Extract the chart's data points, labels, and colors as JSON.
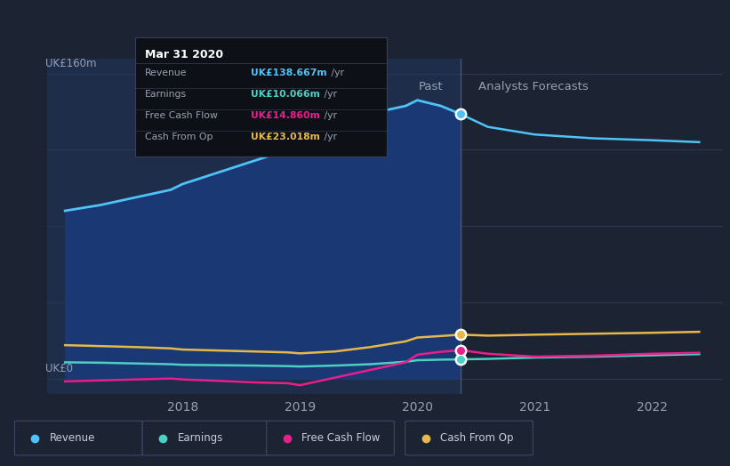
{
  "bg_color": "#1c2333",
  "past_bg": "#1e2d4a",
  "forecast_bg": "#1c2333",
  "divider_x": 2020.37,
  "x_min": 2016.85,
  "x_max": 2022.6,
  "y_min": -8,
  "y_max": 168,
  "y_label": "UK£160m",
  "y_zero_label": "UK£0",
  "x_ticks": [
    2018,
    2019,
    2020,
    2021,
    2022
  ],
  "past_label": "Past",
  "forecast_label": "Analysts Forecasts",
  "grid_color": "#2e3a50",
  "divider_color": "#4a5570",
  "revenue": {
    "x": [
      2017.0,
      2017.3,
      2017.6,
      2017.9,
      2018.0,
      2018.3,
      2018.6,
      2018.9,
      2019.0,
      2019.3,
      2019.6,
      2019.9,
      2020.0,
      2020.2,
      2020.37
    ],
    "y": [
      88,
      91,
      95,
      99,
      102,
      108,
      114,
      120,
      126,
      133,
      139,
      143,
      146,
      143,
      138.667
    ],
    "color": "#4fc3f7",
    "fill_color": "#1a3a78",
    "label": "Revenue"
  },
  "revenue_forecast": {
    "x": [
      2020.37,
      2020.6,
      2021.0,
      2021.5,
      2022.0,
      2022.4
    ],
    "y": [
      138.667,
      132,
      128,
      126,
      125,
      124
    ],
    "color": "#4fc3f7"
  },
  "earnings": {
    "x": [
      2017.0,
      2017.3,
      2017.6,
      2017.9,
      2018.0,
      2018.3,
      2018.6,
      2018.9,
      2019.0,
      2019.3,
      2019.6,
      2019.9,
      2020.0,
      2020.2,
      2020.37
    ],
    "y": [
      8.5,
      8.3,
      7.9,
      7.5,
      7.2,
      7.0,
      6.8,
      6.5,
      6.3,
      6.8,
      7.5,
      8.8,
      9.6,
      9.9,
      10.066
    ],
    "color": "#4dd0c4",
    "label": "Earnings"
  },
  "earnings_forecast": {
    "x": [
      2020.37,
      2020.6,
      2021.0,
      2021.5,
      2022.0,
      2022.4
    ],
    "y": [
      10.066,
      10.3,
      11.0,
      11.5,
      12.2,
      12.8
    ],
    "color": "#4dd0c4"
  },
  "fcf": {
    "x": [
      2017.0,
      2017.3,
      2017.6,
      2017.9,
      2018.0,
      2018.3,
      2018.6,
      2018.9,
      2019.0,
      2019.3,
      2019.6,
      2019.9,
      2020.0,
      2020.2,
      2020.37
    ],
    "y": [
      -1.5,
      -1.0,
      -0.5,
      0.0,
      -0.5,
      -1.2,
      -2.0,
      -2.5,
      -3.5,
      0.5,
      4.5,
      8.5,
      12.5,
      14.0,
      14.86
    ],
    "color": "#e91e8c",
    "label": "Free Cash Flow"
  },
  "fcf_forecast": {
    "x": [
      2020.37,
      2020.6,
      2021.0,
      2021.5,
      2022.0,
      2022.4
    ],
    "y": [
      14.86,
      13.0,
      11.5,
      12.0,
      13.0,
      13.5
    ],
    "color": "#e91e8c"
  },
  "cashfromop": {
    "x": [
      2017.0,
      2017.3,
      2017.6,
      2017.9,
      2018.0,
      2018.3,
      2018.6,
      2018.9,
      2019.0,
      2019.3,
      2019.6,
      2019.9,
      2020.0,
      2020.2,
      2020.37
    ],
    "y": [
      17.5,
      17.0,
      16.5,
      15.8,
      15.2,
      14.7,
      14.2,
      13.7,
      13.2,
      14.2,
      16.5,
      19.5,
      21.5,
      22.3,
      23.018
    ],
    "color": "#e6b84a",
    "label": "Cash From Op"
  },
  "cashfromop_forecast": {
    "x": [
      2020.37,
      2020.6,
      2021.0,
      2021.5,
      2022.0,
      2022.4
    ],
    "y": [
      23.018,
      22.5,
      23.0,
      23.5,
      24.0,
      24.5
    ],
    "color": "#e6b84a"
  },
  "tooltip": {
    "title": "Mar 31 2020",
    "rows": [
      {
        "label": "Revenue",
        "value": "UK£138.667m /yr",
        "color": "#4fc3f7"
      },
      {
        "label": "Earnings",
        "value": "UK£10.066m /yr",
        "color": "#4dd0c4"
      },
      {
        "label": "Free Cash Flow",
        "value": "UK£14.860m /yr",
        "color": "#e91e8c"
      },
      {
        "label": "Cash From Op",
        "value": "UK£23.018m /yr",
        "color": "#e6b84a"
      }
    ],
    "bg": "#0d1117",
    "border": "#3a3f55"
  },
  "legend_items": [
    {
      "label": "Revenue",
      "color": "#4fc3f7"
    },
    {
      "label": "Earnings",
      "color": "#4dd0c4"
    },
    {
      "label": "Free Cash Flow",
      "color": "#e91e8c"
    },
    {
      "label": "Cash From Op",
      "color": "#e6b84a"
    }
  ]
}
